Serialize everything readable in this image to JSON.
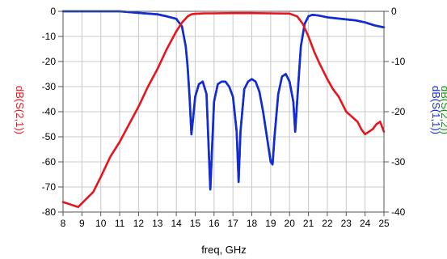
{
  "chart_data": {
    "type": "line",
    "xlabel": "freq, GHz",
    "xlim": [
      8,
      25
    ],
    "x_ticks": [
      "8",
      "9",
      "10",
      "11",
      "12",
      "13",
      "14",
      "15",
      "16",
      "17",
      "18",
      "19",
      "20",
      "21",
      "22",
      "23",
      "24",
      "25"
    ],
    "ylim_left": [
      -80,
      0
    ],
    "y_ticks_left": [
      "0",
      "-10",
      "-20",
      "-30",
      "-40",
      "-50",
      "-60",
      "-70",
      "-80"
    ],
    "ylim_right": [
      -40,
      0
    ],
    "y_ticks_right": [
      "0",
      "-10",
      "-20",
      "-30",
      "-40"
    ],
    "ylabel_left": "dB(S(2,1))",
    "ylabel_right_top": "dB(S(1,1))",
    "ylabel_right_bottom": "dB(S(2,2))",
    "grid": true,
    "colors": {
      "s21": "#e8141c",
      "s11": "#1428dc",
      "s22": "#109010"
    },
    "series": [
      {
        "name": "dB(S(2,1))",
        "axis": "left",
        "x": [
          8.0,
          8.4,
          8.8,
          9.2,
          9.6,
          10.0,
          10.5,
          11.0,
          11.5,
          12.0,
          12.5,
          13.0,
          13.5,
          14.0,
          14.3,
          14.6,
          14.8,
          15.0,
          15.5,
          16,
          17,
          18,
          19,
          20.0,
          20.4,
          20.7,
          21.0,
          21.3,
          21.6,
          22.0,
          22.3,
          22.6,
          23.0,
          23.3,
          23.6,
          23.8,
          24.0,
          24.2,
          24.4,
          24.6,
          24.8,
          25.0
        ],
        "y": [
          -76,
          -77,
          -78,
          -75,
          -72,
          -66,
          -58,
          -52,
          -45,
          -38,
          -30,
          -23,
          -15,
          -8,
          -4.5,
          -2,
          -1.2,
          -1,
          -0.8,
          -0.8,
          -0.7,
          -0.7,
          -0.8,
          -0.9,
          -2,
          -5,
          -10,
          -16,
          -21,
          -27,
          -31,
          -34,
          -40,
          -42,
          -44,
          -47,
          -49,
          -48,
          -47,
          -45,
          -44,
          -48
        ]
      },
      {
        "name": "dB(S(1,1))",
        "axis": "right",
        "x": [
          8,
          11,
          12,
          13,
          13.5,
          14.0,
          14.3,
          14.5,
          14.6,
          14.7,
          14.8,
          14.9,
          15.0,
          15.2,
          15.4,
          15.6,
          15.8,
          16.0,
          16.2,
          16.4,
          16.6,
          16.8,
          17.0,
          17.2,
          17.3,
          17.4,
          17.6,
          17.8,
          18.0,
          18.2,
          18.4,
          18.6,
          18.8,
          19.0,
          19.1,
          19.2,
          19.4,
          19.6,
          19.8,
          20.0,
          20.2,
          20.3,
          20.4,
          20.6,
          20.8,
          21.0,
          21.2,
          21.5,
          22,
          22.5,
          23,
          23.5,
          24,
          24.5,
          25
        ],
        "y": [
          0,
          0,
          -0.3,
          -0.6,
          -1,
          -1.5,
          -3,
          -7,
          -11,
          -17,
          -24.5,
          -21,
          -17,
          -14.5,
          -14,
          -16.5,
          -35.5,
          -18,
          -14.5,
          -14,
          -14,
          -15,
          -17,
          -24,
          -34,
          -24,
          -15.5,
          -14,
          -13.5,
          -14,
          -16,
          -20,
          -25,
          -30,
          -30.5,
          -25,
          -16.5,
          -13,
          -12.5,
          -14,
          -18,
          -24,
          -18,
          -7,
          -2.5,
          -1,
          -0.7,
          -0.8,
          -1.2,
          -1.4,
          -1.6,
          -1.8,
          -2.2,
          -2.8,
          -3.2
        ]
      },
      {
        "name": "dB(S(2,2))",
        "axis": "right",
        "x": [
          8,
          11,
          12,
          13,
          13.5,
          14.0,
          14.3,
          14.5,
          14.6,
          14.7,
          14.8,
          14.9,
          15.0,
          15.2,
          15.4,
          15.6,
          15.8,
          16.0,
          16.2,
          16.4,
          16.6,
          16.8,
          17.0,
          17.2,
          17.3,
          17.4,
          17.6,
          17.8,
          18.0,
          18.2,
          18.4,
          18.6,
          18.8,
          19.0,
          19.1,
          19.2,
          19.4,
          19.6,
          19.8,
          20.0,
          20.2,
          20.3,
          20.4,
          20.6,
          20.8,
          21.0,
          21.2,
          21.5,
          22,
          22.5,
          23,
          23.5,
          24,
          24.5,
          25
        ],
        "y": [
          0,
          0,
          -0.3,
          -0.6,
          -1,
          -1.5,
          -3,
          -7,
          -11,
          -17,
          -24.5,
          -21,
          -17,
          -14.5,
          -14,
          -16.5,
          -35.5,
          -18,
          -14.5,
          -14,
          -14,
          -15,
          -17,
          -24,
          -34,
          -24,
          -15.5,
          -14,
          -13.5,
          -14,
          -16,
          -20,
          -25,
          -30,
          -30.5,
          -25,
          -16.5,
          -13,
          -12.5,
          -14,
          -18,
          -24,
          -18,
          -7,
          -2.5,
          -1,
          -0.7,
          -0.8,
          -1.2,
          -1.4,
          -1.6,
          -1.8,
          -2.2,
          -2.8,
          -3.2
        ]
      }
    ]
  }
}
